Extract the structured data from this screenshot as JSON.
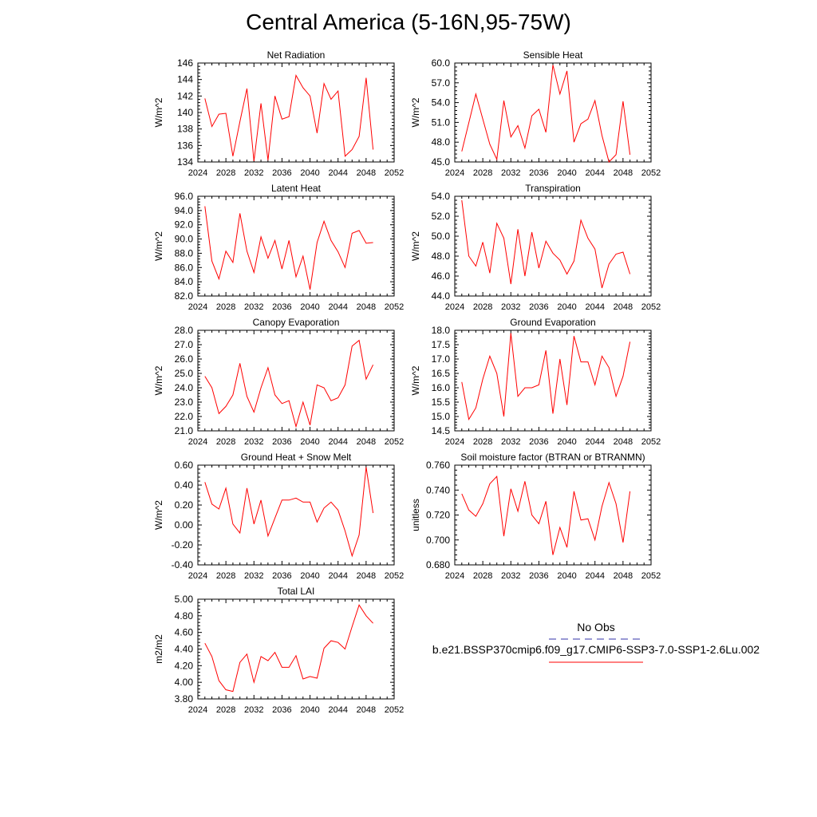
{
  "title": "Central America (5-16N,95-75W)",
  "legend": {
    "obs_label": "No Obs",
    "obs_color": "#3333aa",
    "case_label": "b.e21.BSSP370cmip6.f09_g17.CMIP6-SSP3-7.0-SSP1-2.6Lu.002",
    "case_color": "#ff0000"
  },
  "line_color": "#ff0000",
  "chart_data": [
    {
      "type": "line",
      "title": "Net Radiation",
      "ylabel": "W/m^2",
      "xlim": [
        2024,
        2052
      ],
      "xticks": [
        "2024",
        "2028",
        "2032",
        "2036",
        "2040",
        "2044",
        "2048",
        "2052"
      ],
      "ylim": [
        134,
        146
      ],
      "yticks": [
        "134",
        "136",
        "138",
        "140",
        "142",
        "144",
        "146"
      ],
      "x": [
        2025,
        2026,
        2027,
        2028,
        2029,
        2030,
        2031,
        2032,
        2033,
        2034,
        2035,
        2036,
        2037,
        2038,
        2039,
        2040,
        2041,
        2042,
        2043,
        2044,
        2045,
        2046,
        2047,
        2048,
        2049
      ],
      "values": [
        141.7,
        138.3,
        139.8,
        139.9,
        134.7,
        138.9,
        142.9,
        134.1,
        141.1,
        134.2,
        142.0,
        139.2,
        139.5,
        144.5,
        143.0,
        142.0,
        137.5,
        143.5,
        141.6,
        142.6,
        134.7,
        135.5,
        137.1,
        144.2,
        135.5
      ]
    },
    {
      "type": "line",
      "title": "Sensible Heat",
      "ylabel": "W/m^2",
      "xlim": [
        2024,
        2052
      ],
      "xticks": [
        "2024",
        "2028",
        "2032",
        "2036",
        "2040",
        "2044",
        "2048",
        "2052"
      ],
      "ylim": [
        45,
        60
      ],
      "yticks": [
        "45.0",
        "48.0",
        "51.0",
        "54.0",
        "57.0",
        "60.0"
      ],
      "x": [
        2025,
        2027,
        2029,
        2030,
        2031,
        2032,
        2033,
        2034,
        2035,
        2036,
        2037,
        2038,
        2039,
        2040,
        2041,
        2042,
        2043,
        2044,
        2045,
        2046,
        2047,
        2048,
        2049
      ],
      "values": [
        46.6,
        55.3,
        47.7,
        45.4,
        54.3,
        48.8,
        50.5,
        47.1,
        52.0,
        53.0,
        49.5,
        59.7,
        55.3,
        58.8,
        48.0,
        50.8,
        51.5,
        54.3,
        49.0,
        45.0,
        46.1,
        54.2,
        46.1
      ]
    },
    {
      "type": "line",
      "title": "Latent Heat",
      "ylabel": "W/m^2",
      "xlim": [
        2024,
        2052
      ],
      "xticks": [
        "2024",
        "2028",
        "2032",
        "2036",
        "2040",
        "2044",
        "2048",
        "2052"
      ],
      "ylim": [
        82,
        96
      ],
      "yticks": [
        "82.0",
        "84.0",
        "86.0",
        "88.0",
        "90.0",
        "92.0",
        "94.0",
        "96.0"
      ],
      "x": [
        2025,
        2026,
        2027,
        2028,
        2029,
        2030,
        2031,
        2032,
        2033,
        2034,
        2035,
        2036,
        2037,
        2038,
        2039,
        2040,
        2041,
        2042,
        2043,
        2044,
        2045,
        2046,
        2047,
        2048,
        2049
      ],
      "values": [
        94.6,
        86.9,
        84.4,
        88.3,
        86.7,
        93.6,
        88.3,
        85.3,
        90.3,
        87.3,
        89.8,
        85.8,
        89.8,
        84.7,
        87.6,
        82.9,
        89.5,
        92.5,
        89.8,
        88.2,
        86.0,
        90.8,
        91.2,
        89.4,
        89.5
      ]
    },
    {
      "type": "line",
      "title": "Transpiration",
      "ylabel": "W/m^2",
      "xlim": [
        2024,
        2052
      ],
      "xticks": [
        "2024",
        "2028",
        "2032",
        "2036",
        "2040",
        "2044",
        "2048",
        "2052"
      ],
      "ylim": [
        44,
        54
      ],
      "yticks": [
        "44.0",
        "46.0",
        "48.0",
        "50.0",
        "52.0",
        "54.0"
      ],
      "x": [
        2025,
        2026,
        2027,
        2028,
        2029,
        2030,
        2031,
        2032,
        2033,
        2034,
        2035,
        2036,
        2037,
        2038,
        2039,
        2040,
        2041,
        2042,
        2043,
        2044,
        2045,
        2046,
        2047,
        2048,
        2049
      ],
      "values": [
        53.6,
        48.0,
        47.0,
        49.4,
        46.3,
        51.3,
        49.8,
        45.2,
        50.7,
        46.0,
        50.4,
        46.8,
        49.5,
        48.3,
        47.6,
        46.2,
        47.5,
        51.6,
        49.8,
        48.7,
        44.8,
        47.2,
        48.2,
        48.4,
        46.2
      ]
    },
    {
      "type": "line",
      "title": "Canopy Evaporation",
      "ylabel": "W/m^2",
      "xlim": [
        2024,
        2052
      ],
      "xticks": [
        "2024",
        "2028",
        "2032",
        "2036",
        "2040",
        "2044",
        "2048",
        "2052"
      ],
      "ylim": [
        21,
        28
      ],
      "yticks": [
        "21.0",
        "22.0",
        "23.0",
        "24.0",
        "25.0",
        "26.0",
        "27.0",
        "28.0"
      ],
      "x": [
        2025,
        2026,
        2027,
        2028,
        2029,
        2030,
        2031,
        2032,
        2033,
        2034,
        2035,
        2036,
        2037,
        2038,
        2039,
        2040,
        2041,
        2042,
        2043,
        2044,
        2045,
        2046,
        2047,
        2048,
        2049
      ],
      "values": [
        24.8,
        24.0,
        22.2,
        22.7,
        23.5,
        25.7,
        23.4,
        22.3,
        24.0,
        25.4,
        23.5,
        22.9,
        23.1,
        21.3,
        23.0,
        21.4,
        24.2,
        24.0,
        23.1,
        23.3,
        24.2,
        26.9,
        27.3,
        24.6,
        25.6
      ]
    },
    {
      "type": "line",
      "title": "Ground Evaporation",
      "ylabel": "W/m^2",
      "xlim": [
        2024,
        2052
      ],
      "xticks": [
        "2024",
        "2028",
        "2032",
        "2036",
        "2040",
        "2044",
        "2048",
        "2052"
      ],
      "ylim": [
        14.5,
        18.0
      ],
      "yticks": [
        "14.5",
        "15.0",
        "15.5",
        "16.0",
        "16.5",
        "17.0",
        "17.5",
        "18.0"
      ],
      "x": [
        2025,
        2026,
        2027,
        2028,
        2029,
        2030,
        2031,
        2032,
        2033,
        2034,
        2035,
        2036,
        2037,
        2038,
        2039,
        2040,
        2041,
        2042,
        2043,
        2044,
        2045,
        2046,
        2047,
        2048,
        2049
      ],
      "values": [
        16.2,
        14.9,
        15.3,
        16.3,
        17.1,
        16.5,
        15.0,
        17.9,
        15.7,
        16.0,
        16.0,
        16.1,
        17.3,
        15.1,
        17.0,
        15.4,
        17.8,
        16.9,
        16.9,
        16.1,
        17.1,
        16.7,
        15.7,
        16.4,
        17.6
      ]
    },
    {
      "type": "line",
      "title": "Ground Heat + Snow Melt",
      "ylabel": "W/m^2",
      "xlim": [
        2024,
        2052
      ],
      "xticks": [
        "2024",
        "2028",
        "2032",
        "2036",
        "2040",
        "2044",
        "2048",
        "2052"
      ],
      "ylim": [
        -0.4,
        0.6
      ],
      "yticks": [
        "-0.40",
        "-0.20",
        "0.00",
        "0.20",
        "0.40",
        "0.60"
      ],
      "x": [
        2025,
        2026,
        2027,
        2028,
        2029,
        2030,
        2031,
        2032,
        2033,
        2034,
        2035,
        2036,
        2037,
        2038,
        2039,
        2040,
        2041,
        2042,
        2043,
        2044,
        2045,
        2046,
        2047,
        2048,
        2049
      ],
      "values": [
        0.43,
        0.21,
        0.16,
        0.37,
        0.01,
        -0.08,
        0.37,
        0.01,
        0.25,
        -0.11,
        0.07,
        0.25,
        0.25,
        0.27,
        0.23,
        0.23,
        0.03,
        0.17,
        0.23,
        0.15,
        -0.06,
        -0.31,
        -0.1,
        0.58,
        0.12
      ]
    },
    {
      "type": "line",
      "title": "Soil moisture factor (BTRAN or BTRANMN)",
      "ylabel": "unitless",
      "xlim": [
        2024,
        2052
      ],
      "xticks": [
        "2024",
        "2028",
        "2032",
        "2036",
        "2040",
        "2044",
        "2048",
        "2052"
      ],
      "ylim": [
        0.68,
        0.76
      ],
      "yticks": [
        "0.680",
        "0.700",
        "0.720",
        "0.740",
        "0.760"
      ],
      "x": [
        2025,
        2026,
        2027,
        2028,
        2029,
        2030,
        2031,
        2032,
        2033,
        2034,
        2035,
        2036,
        2037,
        2038,
        2039,
        2040,
        2041,
        2042,
        2043,
        2044,
        2045,
        2046,
        2047,
        2048,
        2049
      ],
      "values": [
        0.737,
        0.724,
        0.719,
        0.729,
        0.745,
        0.751,
        0.703,
        0.741,
        0.723,
        0.747,
        0.72,
        0.713,
        0.731,
        0.688,
        0.71,
        0.694,
        0.739,
        0.716,
        0.717,
        0.7,
        0.727,
        0.746,
        0.729,
        0.698,
        0.739
      ]
    },
    {
      "type": "line",
      "title": "Total LAI",
      "ylabel": "m2/m2",
      "xlim": [
        2024,
        2052
      ],
      "xticks": [
        "2024",
        "2028",
        "2032",
        "2036",
        "2040",
        "2044",
        "2048",
        "2052"
      ],
      "ylim": [
        3.8,
        5.0
      ],
      "yticks": [
        "3.80",
        "4.00",
        "4.20",
        "4.40",
        "4.60",
        "4.80",
        "5.00"
      ],
      "x": [
        2025,
        2026,
        2027,
        2028,
        2029,
        2030,
        2031,
        2032,
        2033,
        2034,
        2035,
        2036,
        2037,
        2038,
        2039,
        2040,
        2041,
        2042,
        2043,
        2044,
        2045,
        2046,
        2047,
        2048,
        2049
      ],
      "values": [
        4.47,
        4.31,
        4.02,
        3.91,
        3.89,
        4.24,
        4.34,
        4.0,
        4.31,
        4.26,
        4.36,
        4.18,
        4.18,
        4.32,
        4.04,
        4.07,
        4.05,
        4.41,
        4.5,
        4.48,
        4.4,
        4.67,
        4.93,
        4.8,
        4.71
      ]
    }
  ]
}
